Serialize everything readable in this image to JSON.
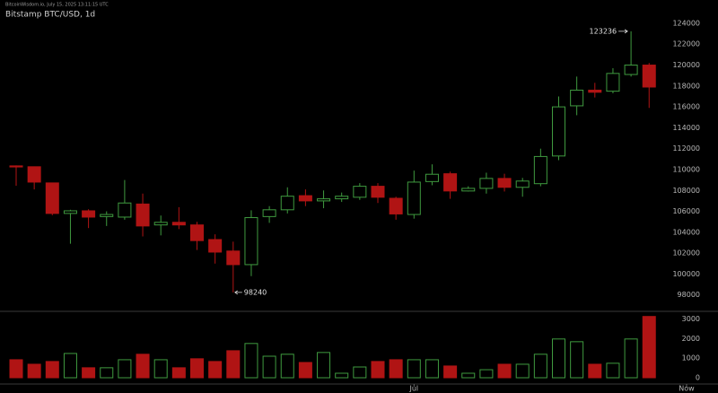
{
  "header": {
    "source_line": "BitcoinWisdom.io, July 15, 2025 13:11:15 UTC",
    "title": "Bitstamp BTC/USD, 1d"
  },
  "chart_data": [
    {
      "type": "candlestick",
      "open": [
        110350,
        110270,
        108720,
        105800,
        106050,
        105500,
        105450,
        106700,
        104700,
        104950,
        104700,
        103300,
        102200,
        100900,
        105500,
        106150,
        107500,
        107000,
        107200,
        107350,
        108400,
        107250,
        105700,
        108850,
        109600,
        107950,
        108200,
        109150,
        108300,
        108650,
        111300,
        116100,
        117600,
        117500,
        119100,
        120000
      ],
      "high": [
        110400,
        110300,
        108750,
        106150,
        106200,
        106000,
        109000,
        107700,
        105600,
        106400,
        105000,
        103800,
        103100,
        106100,
        106500,
        108300,
        108100,
        108000,
        107800,
        108700,
        108700,
        107400,
        109900,
        110500,
        109800,
        108400,
        109700,
        109600,
        109200,
        112000,
        117000,
        118900,
        118300,
        119700,
        123236,
        120200
      ],
      "low": [
        108450,
        108100,
        105630,
        102900,
        104400,
        104600,
        105200,
        103600,
        103700,
        104300,
        102300,
        101000,
        98240,
        99800,
        104900,
        105800,
        106500,
        106300,
        106900,
        107100,
        106800,
        105200,
        105300,
        108500,
        107200,
        107900,
        107700,
        107900,
        107400,
        108400,
        110900,
        115200,
        116900,
        117300,
        118900,
        115900
      ],
      "close": [
        110250,
        108800,
        105800,
        106050,
        105450,
        105700,
        106800,
        104600,
        104950,
        104700,
        103200,
        102100,
        100900,
        105400,
        106150,
        107450,
        107000,
        107200,
        107450,
        108400,
        107350,
        105750,
        108800,
        109550,
        107950,
        108200,
        109150,
        108300,
        108900,
        111250,
        116000,
        117600,
        117400,
        119200,
        120000,
        117900
      ],
      "up_color": "#3f9a3f",
      "down_color": "#b01414",
      "ylim": [
        96600,
        125800
      ],
      "yticks": [
        98000,
        100000,
        102000,
        104000,
        106000,
        108000,
        110000,
        112000,
        114000,
        116000,
        118000,
        120000,
        122000,
        124000
      ],
      "grid": false
    },
    {
      "type": "volume",
      "categories": [
        null,
        null,
        null,
        null,
        null,
        null,
        null,
        null,
        null,
        null,
        null,
        null,
        null,
        null,
        null,
        null,
        null,
        null,
        null,
        null,
        null,
        null,
        "Jul",
        null,
        null,
        null,
        null,
        null,
        null,
        null,
        null,
        null,
        null,
        null,
        null,
        null
      ],
      "values": [
        920,
        690,
        830,
        1240,
        510,
        510,
        920,
        1200,
        920,
        510,
        970,
        830,
        1380,
        1750,
        1100,
        1200,
        780,
        1290,
        230,
        550,
        830,
        920,
        920,
        920,
        600,
        230,
        410,
        690,
        690,
        1200,
        1980,
        1840,
        690,
        740,
        1980,
        3130
      ],
      "x_end_label": "Now",
      "ylim": [
        0,
        3300
      ],
      "yticks": [
        0,
        1000,
        2000,
        3000
      ],
      "grid": false
    }
  ]
}
